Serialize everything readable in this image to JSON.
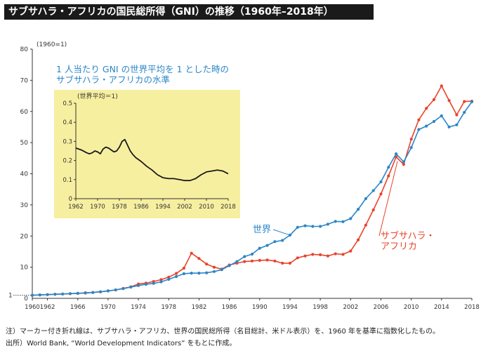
{
  "title": "サブサハラ・アフリカの国民総所得（GNI）の推移（1960年–2018年）",
  "notes": {
    "note": "注）マーカー付き折れ線は、サブサハラ・アフリカ、世界の国民総所得（名目総計、米ドル表示）を、1960 年を基準に指数化したもの。",
    "source": "出所）World Bank, “World Development Indicators” をもとに作成。"
  },
  "colors": {
    "world": "#2b86c8",
    "ssa": "#e8432a",
    "inset_bg": "#f7efa0",
    "inset_line": "#1a1a1a",
    "annotation_text": "#2b86c8"
  },
  "chart_data": [
    {
      "type": "line",
      "unit_label": "(1960=1)",
      "ylim": [
        0,
        80
      ],
      "yticks": [
        10,
        20,
        30,
        40,
        50,
        60,
        70,
        80
      ],
      "extra_ytick": {
        "value": 1,
        "label": "1"
      },
      "zero_label": "0",
      "xlim": [
        1960,
        2018
      ],
      "xticks": [
        1960,
        1962,
        1966,
        1970,
        1974,
        1978,
        1982,
        1986,
        1990,
        1994,
        1998,
        2002,
        2006,
        2010,
        2014,
        2018
      ],
      "grid": false,
      "series": [
        {
          "name": "世界",
          "color_key": "world",
          "label_lines": [
            "世界"
          ],
          "x": [
            1960,
            1961,
            1962,
            1963,
            1964,
            1965,
            1966,
            1967,
            1968,
            1969,
            1970,
            1971,
            1972,
            1973,
            1974,
            1975,
            1976,
            1977,
            1978,
            1979,
            1980,
            1981,
            1982,
            1983,
            1984,
            1985,
            1986,
            1987,
            1988,
            1989,
            1990,
            1991,
            1992,
            1993,
            1994,
            1995,
            1996,
            1997,
            1998,
            1999,
            2000,
            2001,
            2002,
            2003,
            2004,
            2005,
            2006,
            2007,
            2008,
            2009,
            2010,
            2011,
            2012,
            2013,
            2014,
            2015,
            2016,
            2017,
            2018
          ],
          "values": [
            1,
            1.1,
            1.2,
            1.3,
            1.4,
            1.5,
            1.6,
            1.7,
            1.9,
            2.1,
            2.4,
            2.7,
            3.1,
            3.6,
            4.1,
            4.5,
            4.8,
            5.3,
            6.1,
            7.0,
            7.9,
            8.1,
            8.1,
            8.2,
            8.6,
            9.2,
            10.5,
            11.8,
            13.4,
            14.2,
            16.1,
            17.0,
            18.2,
            18.6,
            20.3,
            22.8,
            23.3,
            23.1,
            23.1,
            23.8,
            24.7,
            24.6,
            25.6,
            28.6,
            32.0,
            34.6,
            37.4,
            42.1,
            46.4,
            43.8,
            48.4,
            54.2,
            55.3,
            56.8,
            58.6,
            55.0,
            55.7,
            59.7,
            63.1
          ]
        },
        {
          "name": "サブサハラ・アフリカ",
          "color_key": "ssa",
          "label_lines": [
            "サブサハラ・",
            "アフリカ"
          ],
          "x": [
            1960,
            1961,
            1962,
            1963,
            1964,
            1965,
            1966,
            1967,
            1968,
            1969,
            1970,
            1971,
            1972,
            1973,
            1974,
            1975,
            1976,
            1977,
            1978,
            1979,
            1980,
            1981,
            1982,
            1983,
            1984,
            1985,
            1986,
            1987,
            1988,
            1989,
            1990,
            1991,
            1992,
            1993,
            1994,
            1995,
            1996,
            1997,
            1998,
            1999,
            2000,
            2001,
            2002,
            2003,
            2004,
            2005,
            2006,
            2007,
            2008,
            2009,
            2010,
            2011,
            2012,
            2013,
            2014,
            2015,
            2016,
            2017,
            2018
          ],
          "values": [
            1,
            1.1,
            1.2,
            1.3,
            1.4,
            1.5,
            1.6,
            1.8,
            1.9,
            2.1,
            2.4,
            2.7,
            3.2,
            3.7,
            4.6,
            4.9,
            5.4,
            6.0,
            6.8,
            8.0,
            9.7,
            14.5,
            12.8,
            11.0,
            10.0,
            9.4,
            10.7,
            11.3,
            11.8,
            12.0,
            12.2,
            12.3,
            12.0,
            11.3,
            11.3,
            13.0,
            13.6,
            14.1,
            14.0,
            13.6,
            14.3,
            14.1,
            15.2,
            18.8,
            23.5,
            28.4,
            33.5,
            39.3,
            45.4,
            43.0,
            51.1,
            57.3,
            61.0,
            63.8,
            68.2,
            63.5,
            58.9,
            63.2,
            63.3
          ]
        }
      ],
      "inset": {
        "title_lines": [
          "1 人当たり GNI の世界平均を 1 とした時の",
          "サブサハラ・アフリカの水準"
        ],
        "unit_label": "(世界平均＝1)",
        "ylim": [
          0,
          0.5
        ],
        "yticks": [
          0,
          0.1,
          0.2,
          0.3,
          0.4,
          0.5
        ],
        "ytick_labels": [
          "0",
          "0.1",
          "0.2",
          "0.3",
          "0.4",
          "0.5"
        ],
        "xlim": [
          1962,
          2018
        ],
        "xticks": [
          1962,
          1970,
          1978,
          1986,
          1994,
          2002,
          2010,
          2018
        ],
        "x": [
          1962,
          1964,
          1966,
          1967,
          1968,
          1969,
          1970,
          1971,
          1972,
          1973,
          1974,
          1975,
          1976,
          1977,
          1978,
          1979,
          1980,
          1981,
          1982,
          1983,
          1984,
          1986,
          1988,
          1990,
          1992,
          1994,
          1996,
          1998,
          2000,
          2002,
          2004,
          2006,
          2008,
          2010,
          2012,
          2014,
          2016,
          2018
        ],
        "values": [
          0.265,
          0.255,
          0.24,
          0.235,
          0.24,
          0.25,
          0.245,
          0.235,
          0.26,
          0.27,
          0.265,
          0.255,
          0.245,
          0.25,
          0.27,
          0.3,
          0.31,
          0.28,
          0.25,
          0.23,
          0.215,
          0.195,
          0.17,
          0.15,
          0.125,
          0.11,
          0.105,
          0.105,
          0.1,
          0.095,
          0.095,
          0.105,
          0.125,
          0.14,
          0.145,
          0.15,
          0.145,
          0.13
        ]
      }
    }
  ]
}
